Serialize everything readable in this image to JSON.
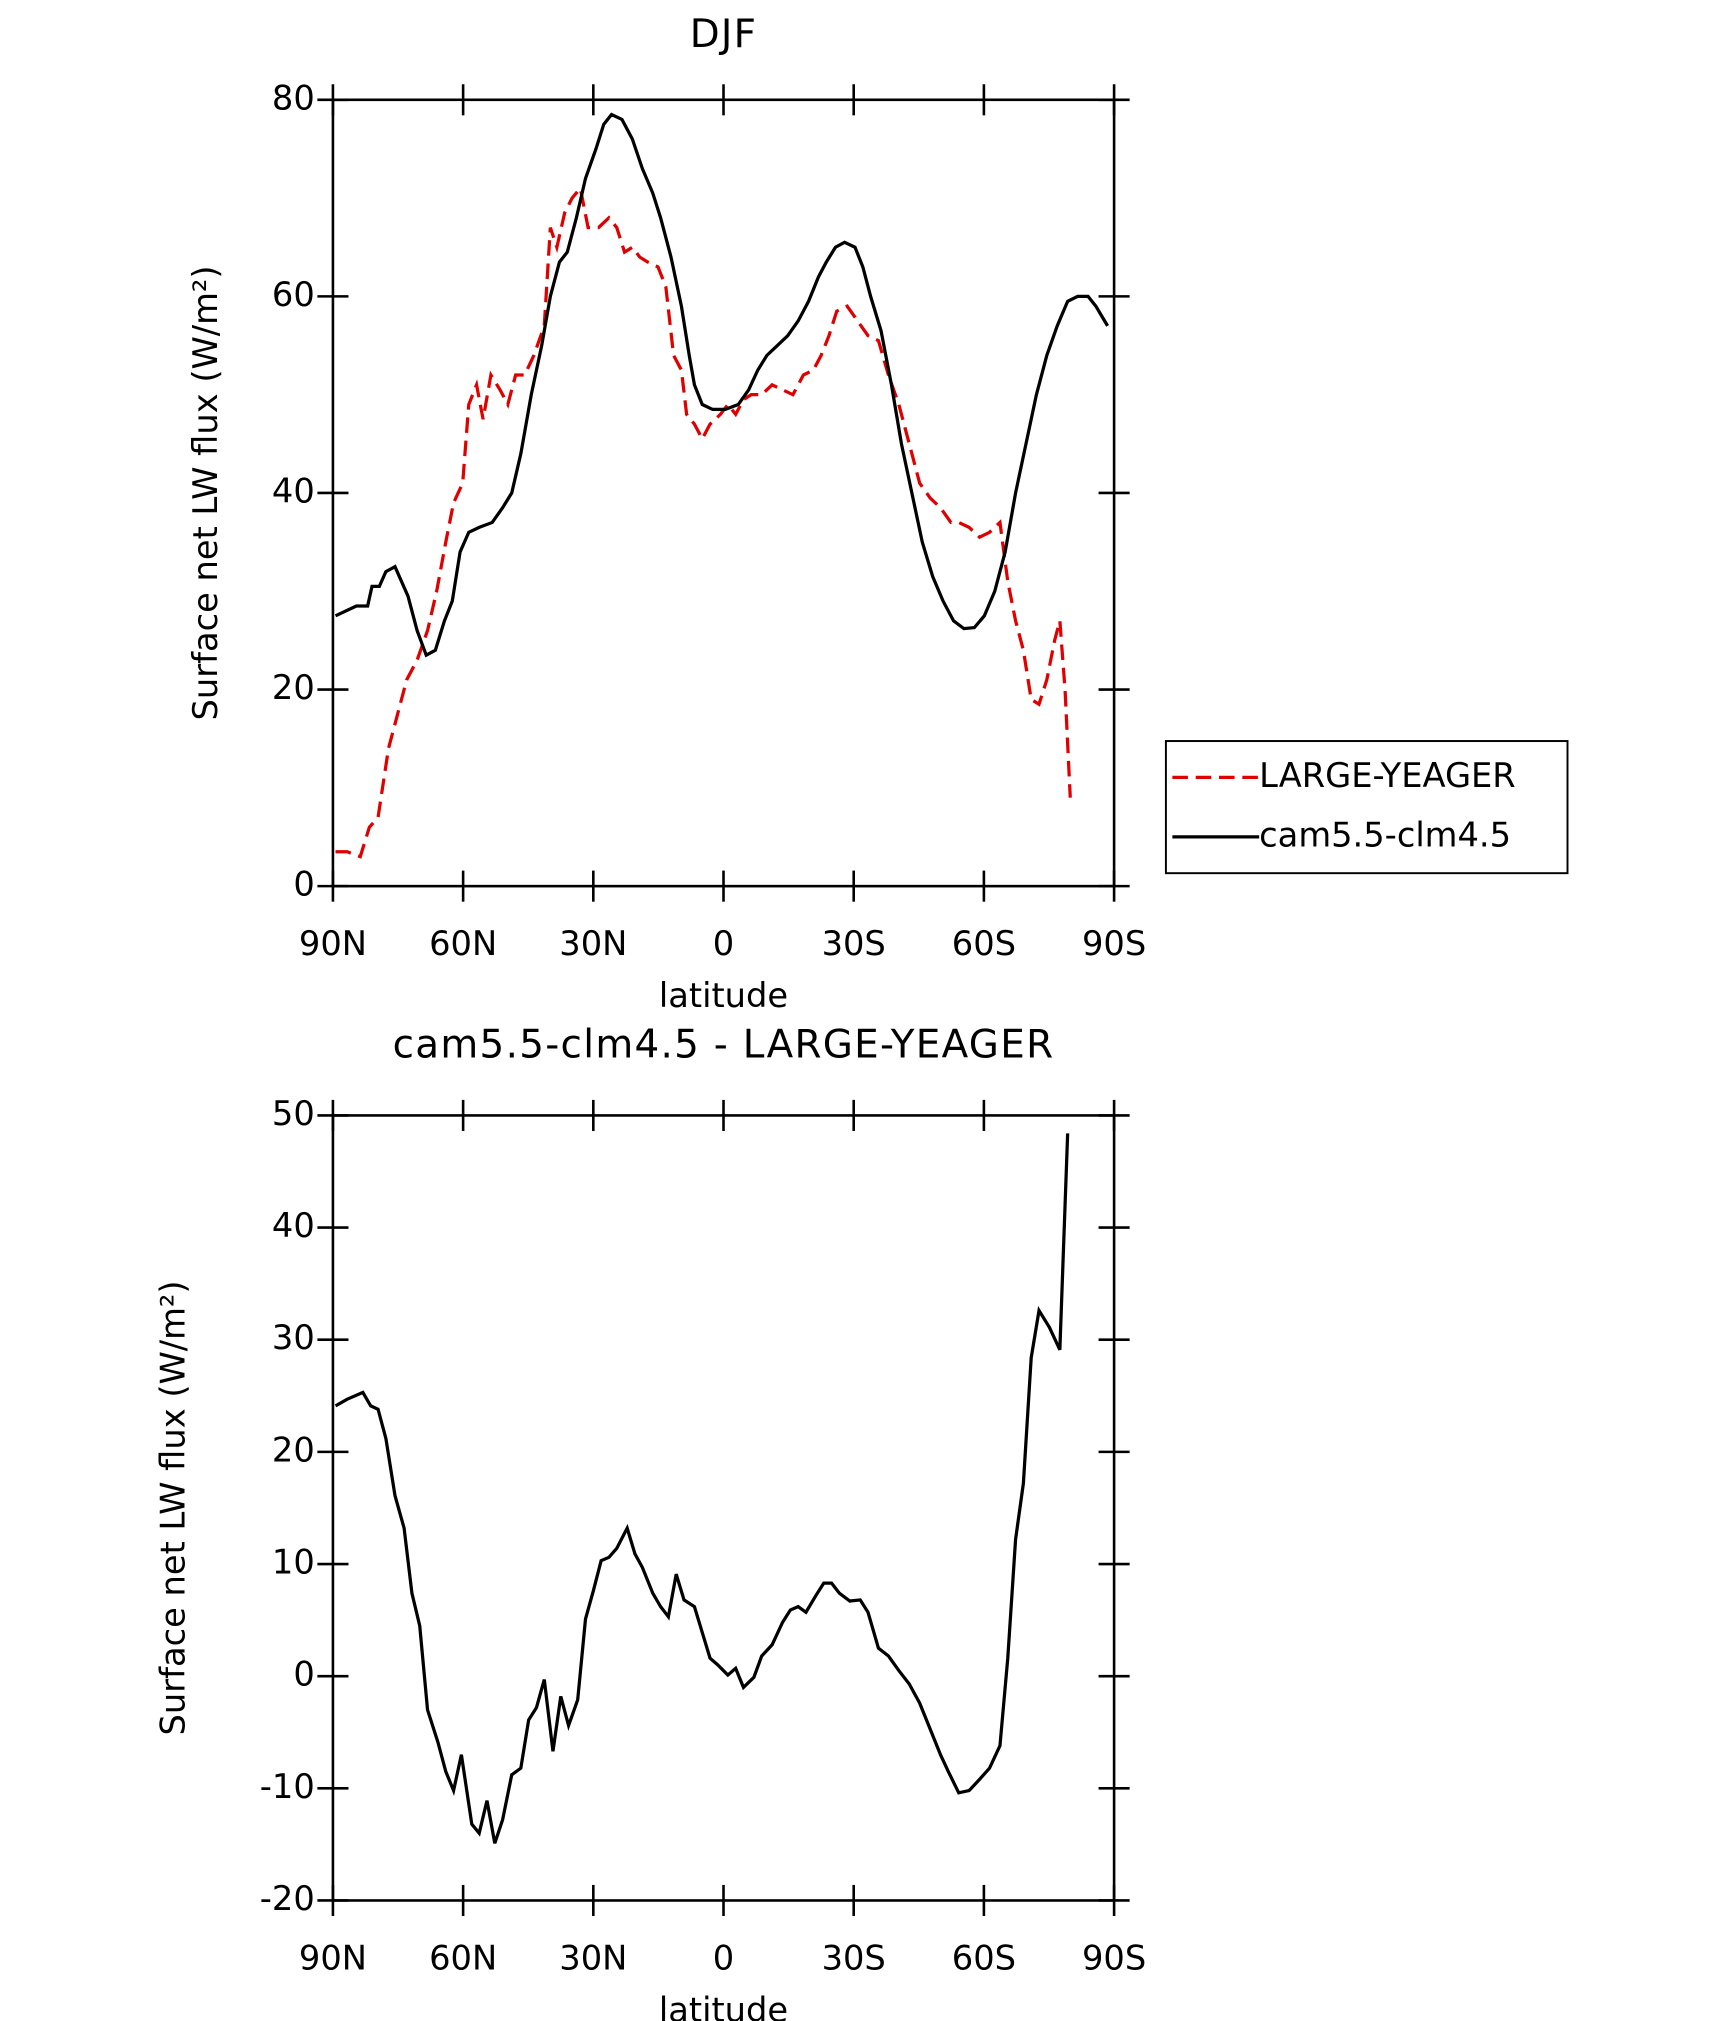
{
  "chart_data": [
    {
      "type": "line",
      "title": "DJF",
      "x_label": "latitude",
      "y_label": "Surface net LW flux (W/m²)",
      "xlim": [
        90,
        -90
      ],
      "xticks": [
        {
          "value": 90,
          "label": "90N"
        },
        {
          "value": 60,
          "label": "60N"
        },
        {
          "value": 30,
          "label": "30N"
        },
        0,
        {
          "value": -30,
          "label": "30S"
        },
        {
          "value": -60,
          "label": "60S"
        },
        {
          "value": -90,
          "label": "90S"
        }
      ],
      "ylim": [
        0,
        80
      ],
      "yticks": [
        0,
        20,
        40,
        60,
        80
      ],
      "legend": "right",
      "series": [
        {
          "name": "LARGE-YEAGER",
          "color": "#e00000",
          "dash": true,
          "x": [
            89.4,
            86.7,
            83.7,
            81.6,
            79.6,
            77.2,
            75.4,
            73,
            70.6,
            68.2,
            66.1,
            64,
            62.2,
            60.1,
            58.7,
            56.9,
            55.4,
            53.6,
            51.5,
            49.7,
            47.9,
            45.8,
            43.7,
            41.3,
            39.9,
            38.4,
            36.6,
            34.9,
            33,
            31.2,
            28.8,
            26.4,
            24.6,
            22.8,
            21,
            19.3,
            17.5,
            15.1,
            13.3,
            11.5,
            9.7,
            8.5,
            6.7,
            4.9,
            3.1,
            0.7,
            -1,
            -2.8,
            -4.6,
            -6.4,
            -8.8,
            -11.2,
            -13.6,
            -16,
            -18.4,
            -20.7,
            -22.5,
            -24.3,
            -26.1,
            -28.5,
            -30.9,
            -33.3,
            -35.7,
            -38,
            -40.4,
            -42.8,
            -45.2,
            -47.6,
            -50,
            -52.4,
            -54.2,
            -56.6,
            -59,
            -61.3,
            -63.7,
            -65.5,
            -67.3,
            -69.1,
            -70.9,
            -72.7,
            -74.5,
            -76.3,
            -77.5,
            -78.7,
            -79.9
          ],
          "values": [
            3.5,
            3.5,
            3,
            6,
            7,
            14,
            17,
            21,
            23,
            26,
            30,
            35,
            39,
            41,
            49,
            51,
            47.5,
            52,
            50.5,
            49,
            52,
            52,
            54,
            57,
            67,
            65,
            68.5,
            70,
            71,
            67,
            67,
            68,
            67,
            64.5,
            65,
            64,
            63.5,
            63,
            61,
            54,
            52.5,
            48,
            47,
            45.5,
            47,
            48,
            49,
            48,
            49.5,
            50,
            50,
            51,
            50.5,
            50,
            52,
            52.5,
            54,
            56,
            58.5,
            59,
            57.5,
            56,
            55.5,
            52,
            49,
            45,
            41,
            39.5,
            38.5,
            37,
            37,
            36.5,
            35.5,
            36,
            37,
            31,
            27,
            24,
            19,
            18.5,
            21,
            25,
            27,
            20,
            9
          ]
        },
        {
          "name": "cam5.5-clm4.5",
          "color": "#000000",
          "x": [
            89.4,
            84.6,
            82,
            81,
            79.3,
            77.8,
            75.7,
            72.7,
            70.6,
            68.5,
            66.4,
            64.3,
            62.5,
            60.7,
            58.7,
            56.3,
            53.3,
            50.9,
            48.8,
            46.7,
            44.3,
            41.9,
            39.9,
            37.8,
            36,
            33.9,
            31.8,
            29.4,
            27.6,
            25.8,
            23.4,
            21,
            18.7,
            16.3,
            14.5,
            12.1,
            9.7,
            7.9,
            6.7,
            4.9,
            2.5,
            -0.4,
            -3.4,
            -5.8,
            -7.9,
            -10,
            -12.4,
            -14.8,
            -17.2,
            -19.6,
            -21.9,
            -23.7,
            -25.8,
            -27.9,
            -30.3,
            -32.1,
            -33.9,
            -36.3,
            -38.7,
            -41,
            -43.4,
            -45.8,
            -48.2,
            -50.6,
            -53,
            -55.4,
            -57.8,
            -60.1,
            -62.5,
            -64.9,
            -67.3,
            -69.7,
            -72.1,
            -74.5,
            -76.9,
            -79.3,
            -81.6,
            -84,
            -85.8,
            -88.5
          ],
          "values": [
            27.5,
            28.5,
            28.5,
            30.5,
            30.5,
            32,
            32.5,
            29.5,
            26,
            23.5,
            24,
            27,
            29,
            34,
            36,
            36.5,
            37,
            38.5,
            40,
            44,
            50,
            55,
            60,
            63.5,
            64.5,
            68,
            72,
            75,
            77.5,
            78.5,
            78,
            76,
            73,
            70.5,
            68,
            64,
            59,
            54,
            51,
            49,
            48.5,
            48.5,
            49,
            50.5,
            52.5,
            54,
            55,
            56,
            57.5,
            59.5,
            62,
            63.5,
            65,
            65.5,
            65,
            63,
            60,
            56.5,
            51,
            45,
            40,
            35,
            31.5,
            29,
            27,
            26.2,
            26.3,
            27.5,
            30,
            34,
            40,
            45,
            50,
            54,
            57,
            59.5,
            60,
            60,
            59,
            57
          ]
        }
      ]
    },
    {
      "type": "line",
      "title": "cam5.5-clm4.5 - LARGE-YEAGER",
      "x_label": "latitude",
      "y_label": "Surface net LW flux (W/m²)",
      "xlim": [
        90,
        -90
      ],
      "xticks": [
        {
          "value": 90,
          "label": "90N"
        },
        {
          "value": 60,
          "label": "60N"
        },
        {
          "value": 30,
          "label": "30N"
        },
        0,
        {
          "value": -30,
          "label": "30S"
        },
        {
          "value": -60,
          "label": "60S"
        },
        {
          "value": -90,
          "label": "90S"
        }
      ],
      "ylim": [
        -20,
        50
      ],
      "yticks": [
        -20,
        -10,
        0,
        10,
        20,
        30,
        40,
        50
      ],
      "color": "#000000",
      "x": [
        89.4,
        86.7,
        83.1,
        81.3,
        79.6,
        77.8,
        75.7,
        73.6,
        71.8,
        70,
        68.2,
        65.8,
        64,
        62.2,
        60.4,
        58,
        56.3,
        54.5,
        52.7,
        50.9,
        48.8,
        46.7,
        44.9,
        43.1,
        41.3,
        39.3,
        37.5,
        35.7,
        33.6,
        31.8,
        30,
        28.2,
        26.4,
        24.6,
        22.2,
        20.4,
        18.7,
        16.3,
        14.5,
        12.7,
        10.9,
        9.1,
        6.7,
        4.9,
        3.1,
        1.3,
        -1,
        -2.8,
        -4.6,
        -7,
        -8.8,
        -11.2,
        -13.6,
        -15.4,
        -17.2,
        -19,
        -21.3,
        -23.1,
        -24.9,
        -26.7,
        -29.1,
        -31.5,
        -33.3,
        -35.7,
        -38,
        -40.4,
        -42.8,
        -45.2,
        -47.6,
        -50,
        -51.8,
        -54.2,
        -56.6,
        -59,
        -61.3,
        -63.7,
        -65.5,
        -67.3,
        -69.1,
        -70.9,
        -72.7,
        -75.1,
        -77.5,
        -79.3
      ],
      "values": [
        24.1,
        24.7,
        25.3,
        24.1,
        23.8,
        21.2,
        16.1,
        13.2,
        7.4,
        4.5,
        -3,
        -5.9,
        -8.5,
        -10.2,
        -7,
        -13.2,
        -14,
        -11.1,
        -14.9,
        -12.8,
        -8.8,
        -8.2,
        -3.9,
        -2.8,
        -0.3,
        -6.7,
        -1.8,
        -4.4,
        -2.1,
        5.1,
        7.6,
        10.3,
        10.6,
        11.4,
        13.2,
        10.9,
        9.7,
        7.4,
        6.2,
        5.3,
        9.1,
        6.8,
        6.2,
        3.9,
        1.6,
        1,
        0.1,
        0.7,
        -1,
        -0.1,
        1.8,
        2.8,
        4.8,
        5.9,
        6.2,
        5.7,
        7.2,
        8.3,
        8.3,
        7.4,
        6.7,
        6.8,
        5.7,
        2.5,
        1.8,
        0.5,
        -0.7,
        -2.4,
        -4.7,
        -7,
        -8.5,
        -10.4,
        -10.2,
        -9.2,
        -8.2,
        -6.2,
        1.6,
        12.2,
        17.2,
        28.4,
        32.6,
        31.1,
        29.1,
        48.4
      ]
    }
  ]
}
